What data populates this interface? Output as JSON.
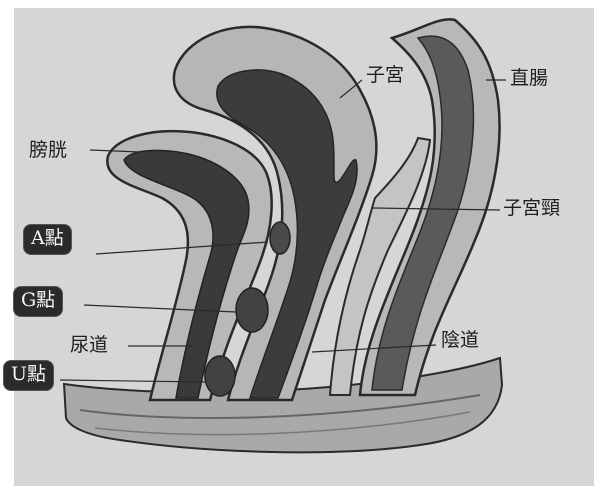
{
  "labels": {
    "uterus": "子宮",
    "rectum": "直腸",
    "bladder": "膀胱",
    "cervix": "子宮頸",
    "urethra": "尿道",
    "vagina": "陰道"
  },
  "badges": {
    "a_spot": "A點",
    "g_spot": "G點",
    "u_spot": "U點"
  },
  "colors": {
    "background": "#d9d9d9",
    "organ_fill": "#b4b4b4",
    "organ_dark": "#3a3a3a",
    "outline": "#2a2a2a",
    "badge_bg": "#2b2b2b",
    "badge_text": "#f4f4f4"
  }
}
